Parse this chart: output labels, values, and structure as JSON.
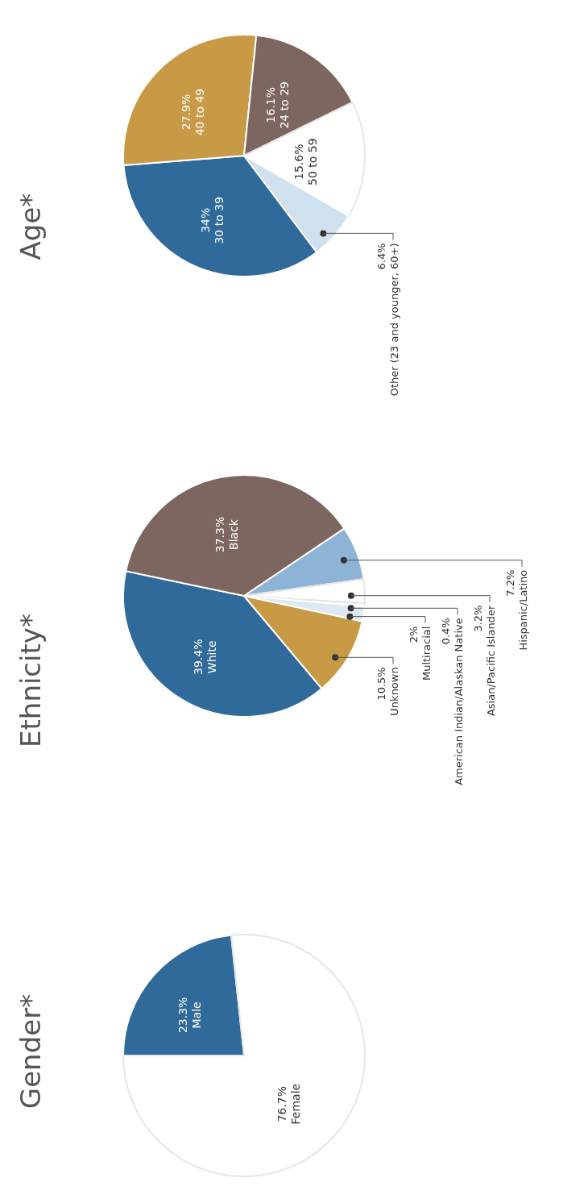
{
  "chart_data": [
    {
      "type": "pie",
      "title": "Gender*",
      "categories": [
        "Male",
        "Female"
      ],
      "values": [
        23.3,
        76.7
      ],
      "colors": [
        "#2f6a9a",
        "#ffffff"
      ],
      "value_labels": [
        "23.3%",
        "76.7%"
      ]
    },
    {
      "type": "pie",
      "title": "Ethnicity*",
      "categories": [
        "White",
        "Black",
        "Hispanic/Latino",
        "Asian/Pacific Islander",
        "American Indian/Alaskan Native",
        "Multiracial",
        "Unknown"
      ],
      "values": [
        39.4,
        37.3,
        7.2,
        3.2,
        0.4,
        2,
        10.5
      ],
      "colors": [
        "#2f6a9a",
        "#7d6660",
        "#8db4d6",
        "#ffffff",
        "#ffffff",
        "#dce8f2",
        "#c99a45"
      ],
      "value_labels": [
        "39.4%",
        "37.3%",
        "7.2%",
        "3.2%",
        "0.4%",
        "2%",
        "10.5%"
      ]
    },
    {
      "type": "pie",
      "title": "Age*",
      "categories": [
        "30 to 39",
        "40 to 49",
        "24 to 29",
        "50 to 59",
        "Other (23 and younger, 60+)"
      ],
      "values": [
        34,
        27.9,
        16.1,
        15.6,
        6.4
      ],
      "colors": [
        "#2f6a9a",
        "#c99a45",
        "#7d6660",
        "#ffffff",
        "#cfe0ee"
      ],
      "value_labels": [
        "34%",
        "27.9%",
        "16.1%",
        "15.6%",
        "6.4%"
      ]
    }
  ]
}
